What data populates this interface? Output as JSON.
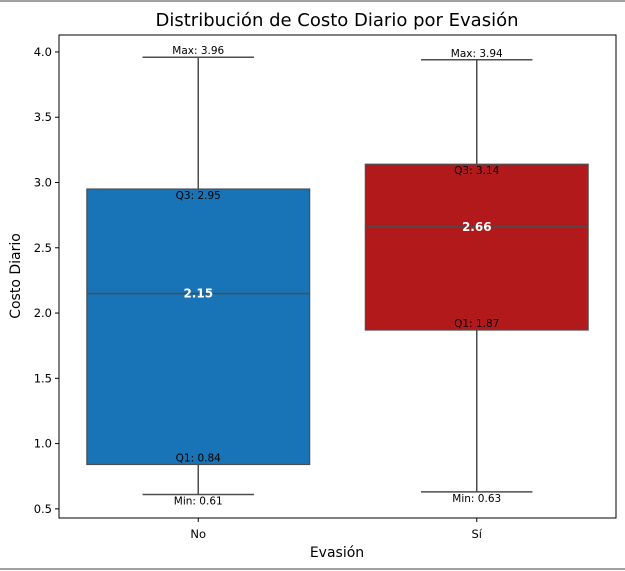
{
  "chart_data": {
    "type": "box",
    "title": "Distribución de Costo Diario por Evasión",
    "xlabel": "Evasión",
    "ylabel": "Costo Diario",
    "ylim": [
      0.43,
      4.13
    ],
    "yticks": [
      0.5,
      1.0,
      1.5,
      2.0,
      2.5,
      3.0,
      3.5,
      4.0
    ],
    "ytick_labels": [
      "0.5",
      "1.0",
      "1.5",
      "2.0",
      "2.5",
      "3.0",
      "3.5",
      "4.0"
    ],
    "grid": false,
    "boxes": [
      {
        "category": "No",
        "min": 0.61,
        "q1": 0.84,
        "median": 2.15,
        "q3": 2.95,
        "max": 3.96,
        "color": "#1874b6",
        "labels": {
          "max": "Max: 3.96",
          "q3": "Q3: 2.95",
          "median": "2.15",
          "q1": "Q1: 0.84",
          "min": "Min: 0.61"
        }
      },
      {
        "category": "Sí",
        "min": 0.63,
        "q1": 1.87,
        "median": 2.66,
        "q3": 3.14,
        "max": 3.94,
        "color": "#b2191b",
        "labels": {
          "max": "Max: 3.94",
          "q3": "Q3: 3.14",
          "median": "2.66",
          "q1": "Q1: 1.87",
          "min": "Min: 0.63"
        }
      }
    ]
  }
}
